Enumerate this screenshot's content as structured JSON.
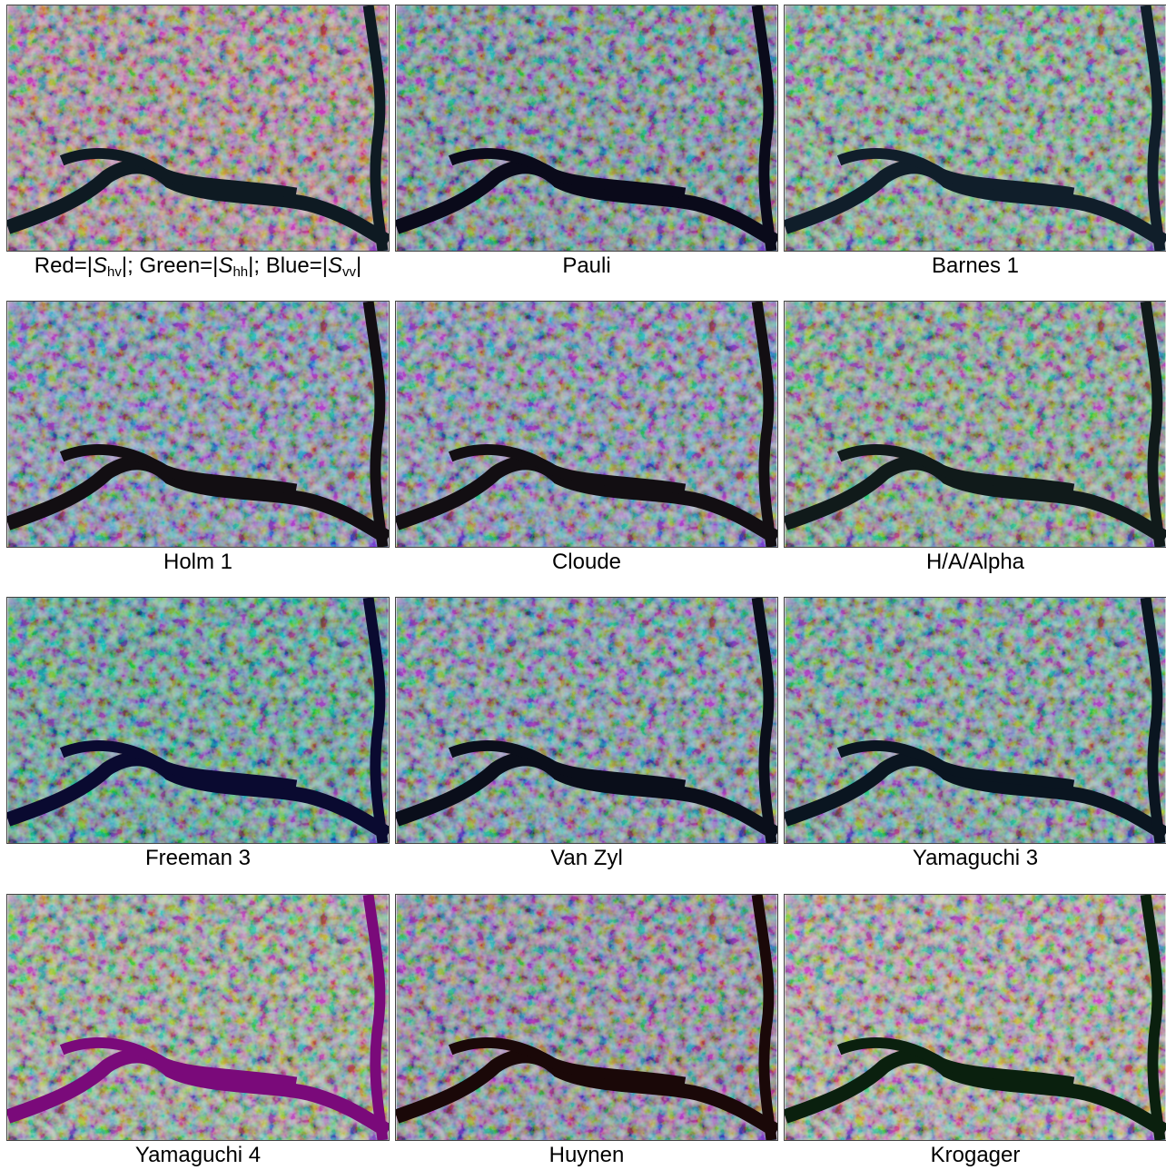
{
  "panels": [
    {
      "caption": [
        "Red=|",
        "S",
        "hv",
        "|; Green=|",
        "S",
        "hh",
        "|; Blue=|",
        "S",
        "vv",
        "|"
      ]
    },
    {
      "caption": "Pauli"
    },
    {
      "caption": "Barnes 1"
    },
    {
      "caption": "Holm 1"
    },
    {
      "caption": "Cloude"
    },
    {
      "caption": "H/A/Alpha"
    },
    {
      "caption": "Freeman 3"
    },
    {
      "caption": "Van Zyl"
    },
    {
      "caption": "Yamaguchi 3"
    },
    {
      "caption": "Yamaguchi 4"
    },
    {
      "caption": "Huynen"
    },
    {
      "caption": "Krogager"
    }
  ]
}
